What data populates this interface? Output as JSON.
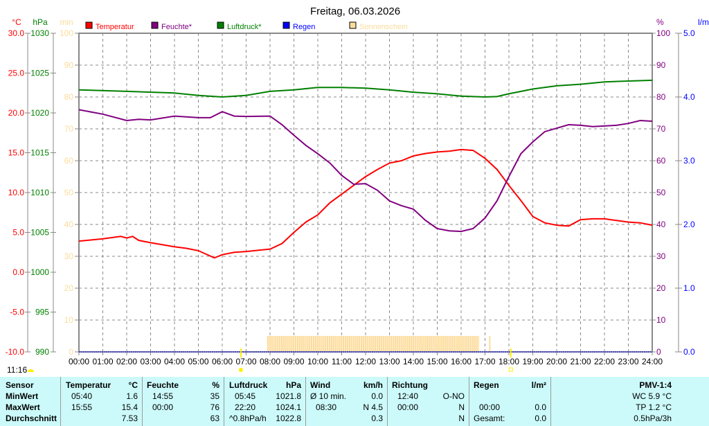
{
  "title": "Freitag, 06.03.2026",
  "current_time": "11:16",
  "colors": {
    "temp": "#ff0000",
    "hum": "#800080",
    "press": "#008000",
    "rain": "#0000ff",
    "sun": "#fcdc9c"
  },
  "chart_data": {
    "type": "line",
    "title": "Freitag, 06.03.2026",
    "axes": {
      "temp": {
        "unit": "°C",
        "min": -10,
        "max": 30,
        "ticks": [
          "30.0",
          "25.0",
          "20.0",
          "15.0",
          "10.0",
          "5.0",
          "0.0",
          "-5.0",
          "-10.0"
        ]
      },
      "press": {
        "unit": "hPa",
        "min": 990,
        "max": 1030,
        "ticks": [
          "1030",
          "1025",
          "1020",
          "1015",
          "1010",
          "1005",
          "1000",
          "995",
          "990"
        ]
      },
      "sun": {
        "unit": "min",
        "min": 0,
        "max": 100,
        "ticks": [
          "100",
          "90",
          "80",
          "70",
          "60",
          "50",
          "40",
          "30",
          "20",
          "10",
          "0"
        ]
      },
      "hum": {
        "unit": "%",
        "min": 0,
        "max": 100,
        "ticks": [
          "100",
          "90",
          "80",
          "70",
          "60",
          "50",
          "40",
          "30",
          "20",
          "10",
          "0"
        ]
      },
      "rain": {
        "unit": "l/m²",
        "min": 0,
        "max": 5,
        "ticks": [
          "5.0",
          "4.0",
          "3.0",
          "2.0",
          "1.0",
          "0.0"
        ]
      }
    },
    "x_ticks": [
      "00:00",
      "01:00",
      "02:00",
      "03:00",
      "04:00",
      "05:00",
      "06:00",
      "07:00",
      "08:00",
      "09:00",
      "10:00",
      "11:00",
      "12:00",
      "13:00",
      "14:00",
      "15:00",
      "16:00",
      "17:00",
      "18:00",
      "19:00",
      "20:00",
      "21:00",
      "22:00",
      "23:00",
      "24:00"
    ],
    "legend": [
      "Temperatur",
      "Feuchte*",
      "Luftdruck*",
      "Regen",
      "Sonnenschein"
    ],
    "grid": true,
    "series": [
      {
        "name": "Temperatur",
        "axis": "temp",
        "x": [
          0,
          1,
          1.75,
          2,
          2.25,
          2.5,
          3,
          4,
          4.5,
          5,
          5.67,
          6,
          6.5,
          7,
          8,
          8.5,
          9,
          9.5,
          10,
          10.5,
          11,
          11.5,
          12,
          12.5,
          13,
          13.5,
          14,
          14.5,
          15,
          15.5,
          16,
          16.5,
          17,
          17.5,
          18,
          18.5,
          19,
          19.5,
          20,
          20.5,
          21,
          21.5,
          22,
          22.5,
          23,
          23.5,
          24
        ],
        "y": [
          3.9,
          4.2,
          4.5,
          4.3,
          4.5,
          4.0,
          3.7,
          3.2,
          3.0,
          2.7,
          1.8,
          2.2,
          2.5,
          2.6,
          2.9,
          3.6,
          5.0,
          6.3,
          7.2,
          8.7,
          9.8,
          10.9,
          12.0,
          12.9,
          13.7,
          14.0,
          14.6,
          14.9,
          15.1,
          15.2,
          15.4,
          15.3,
          14.3,
          12.9,
          10.9,
          9.0,
          7.0,
          6.2,
          5.9,
          5.8,
          6.6,
          6.7,
          6.7,
          6.5,
          6.3,
          6.2,
          5.9
        ]
      },
      {
        "name": "Feuchte*",
        "axis": "hum",
        "x": [
          0,
          1,
          2,
          2.5,
          3,
          4,
          5,
          5.5,
          6,
          6.5,
          7,
          8,
          8.5,
          9,
          9.5,
          10,
          10.5,
          11,
          11.5,
          12,
          12.5,
          13,
          13.5,
          14,
          14.5,
          15,
          15.5,
          16,
          16.5,
          17,
          17.5,
          18,
          18.5,
          19,
          19.5,
          20,
          20.5,
          21,
          21.5,
          22,
          22.5,
          23,
          23.5,
          24
        ],
        "y": [
          76,
          74.6,
          72.6,
          73,
          72.8,
          74,
          73.5,
          73.5,
          75.4,
          74,
          73.9,
          74,
          71.3,
          68,
          64.8,
          62.2,
          59.3,
          55.4,
          52.6,
          52.8,
          50.7,
          47.4,
          45.9,
          44.8,
          41.3,
          38.7,
          38,
          37.8,
          38.7,
          42,
          47.4,
          55,
          62.2,
          65.9,
          69.1,
          70.2,
          71.3,
          71.1,
          70.7,
          70.9,
          71.1,
          71.7,
          72.6,
          72.4
        ]
      },
      {
        "name": "Luftdruck*",
        "axis": "press",
        "x": [
          0,
          2,
          4,
          5,
          6,
          7,
          8,
          9,
          10,
          11,
          12,
          13,
          14,
          15,
          16,
          17,
          17.5,
          18,
          19,
          20,
          21,
          22,
          23,
          24
        ],
        "y": [
          1022.9,
          1022.7,
          1022.5,
          1022.2,
          1022.0,
          1022.2,
          1022.7,
          1022.9,
          1023.2,
          1023.2,
          1023.1,
          1022.9,
          1022.6,
          1022.4,
          1022.1,
          1022.0,
          1022.05,
          1022.4,
          1023.0,
          1023.4,
          1023.6,
          1023.9,
          1024.0,
          1024.1
        ]
      },
      {
        "name": "Regen",
        "axis": "rain",
        "x": [
          0,
          24
        ],
        "y": [
          0,
          0
        ]
      }
    ],
    "sunshine": {
      "from": 7.88,
      "to": 16.67,
      "minutes": 5,
      "extra_hours": [
        17.17
      ]
    },
    "sunrise": 6.78,
    "sunset": 18.08
  },
  "stats": {
    "headers": {
      "sensor": "Sensor",
      "temp": "Temperatur",
      "temp_unit": "°C",
      "hum": "Feuchte",
      "hum_unit": "%",
      "press": "Luftdruck",
      "press_unit": "hPa",
      "wind": "Wind",
      "wind_unit": "km/h",
      "dir": "Richtung",
      "rain": "Regen",
      "rain_unit": "l/m²",
      "pmv": "PMV-1:4"
    },
    "rows": [
      {
        "label": "MinWert",
        "temp_time": "05:40",
        "temp": "1.6",
        "hum_time": "14:55",
        "hum": "35",
        "press_time": "05:45",
        "press": "1021.8",
        "wind_label": "Ø 10 min.",
        "wind": "0.0",
        "dir_time": "12:40",
        "dir": "O-NO",
        "rain_time": "",
        "rain": "",
        "pmv": "WC 5.9 °C"
      },
      {
        "label": "MaxWert",
        "temp_time": "15:55",
        "temp": "15.4",
        "hum_time": "00:00",
        "hum": "76",
        "press_time": "22:20",
        "press": "1024.1",
        "wind_label": "08:30",
        "wind": "N 4.5",
        "dir_time": "00:00",
        "dir": "N",
        "rain_time": "00:00",
        "rain": "0.0",
        "pmv": "TP 1.2 °C"
      },
      {
        "label": "Durchschnitt",
        "temp_time": "",
        "temp": "7.53",
        "hum_time": "",
        "hum": "63",
        "press_time": "^0.8hPa/h",
        "press": "1022.8",
        "wind_label": "",
        "wind": "0.3",
        "dir_time": "",
        "dir": "N",
        "rain_time": "Gesamt:",
        "rain": "0.0",
        "pmv": "0.5hPa/3h"
      }
    ]
  }
}
